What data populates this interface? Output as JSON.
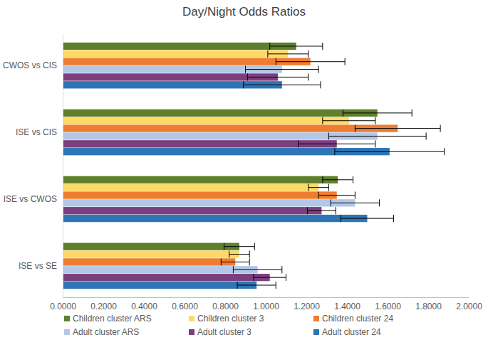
{
  "chart_data": {
    "type": "bar",
    "orientation": "horizontal",
    "title": "Day/Night Odds Ratios",
    "categories": [
      "CWOS vs CIS",
      "ISE vs CIS",
      "ISE vs CWOS",
      "ISE vs SE"
    ],
    "series": [
      {
        "name": "Children cluster ARS",
        "color": "#5e7f2c",
        "values": [
          1.15,
          1.55,
          1.355,
          0.87
        ],
        "errors": [
          0.13,
          0.17,
          0.075,
          0.075
        ]
      },
      {
        "name": "Children cluster 3",
        "color": "#ffd966",
        "values": [
          1.11,
          1.41,
          1.26,
          0.87
        ],
        "errors": [
          0.1,
          0.13,
          0.05,
          0.05
        ]
      },
      {
        "name": "Children cluster 24",
        "color": "#ed7d31",
        "values": [
          1.22,
          1.65,
          1.35,
          0.85
        ],
        "errors": [
          0.17,
          0.21,
          0.09,
          0.07
        ]
      },
      {
        "name": "Adult cluster ARS",
        "color": "#b4c7e7",
        "values": [
          1.08,
          1.55,
          1.44,
          0.96
        ],
        "errors": [
          0.18,
          0.24,
          0.12,
          0.12
        ]
      },
      {
        "name": "Adult cluster 3",
        "color": "#7c3f7e",
        "values": [
          1.06,
          1.35,
          1.275,
          1.02
        ],
        "errors": [
          0.15,
          0.19,
          0.07,
          0.08
        ]
      },
      {
        "name": "Adult cluster 24",
        "color": "#2e75b6",
        "values": [
          1.08,
          1.61,
          1.5,
          0.955
        ],
        "errors": [
          0.19,
          0.27,
          0.13,
          0.095
        ]
      }
    ],
    "xlim": [
      0,
      2
    ],
    "xticks": [
      {
        "value": 0,
        "label": "0.0000"
      },
      {
        "value": 0.2,
        "label": "0.2000"
      },
      {
        "value": 0.4,
        "label": "0.4000"
      },
      {
        "value": 0.6,
        "label": "0.6000"
      },
      {
        "value": 0.8,
        "label": "0.8000"
      },
      {
        "value": 1,
        "label": "1.0000"
      },
      {
        "value": 1.2,
        "label": "1.2000"
      },
      {
        "value": 1.4,
        "label": "1.4000"
      },
      {
        "value": 1.6,
        "label": "1.6000"
      },
      {
        "value": 1.8,
        "label": "1.8000"
      },
      {
        "value": 2,
        "label": "2.0000"
      }
    ],
    "grid": false,
    "legend": "bottom"
  }
}
